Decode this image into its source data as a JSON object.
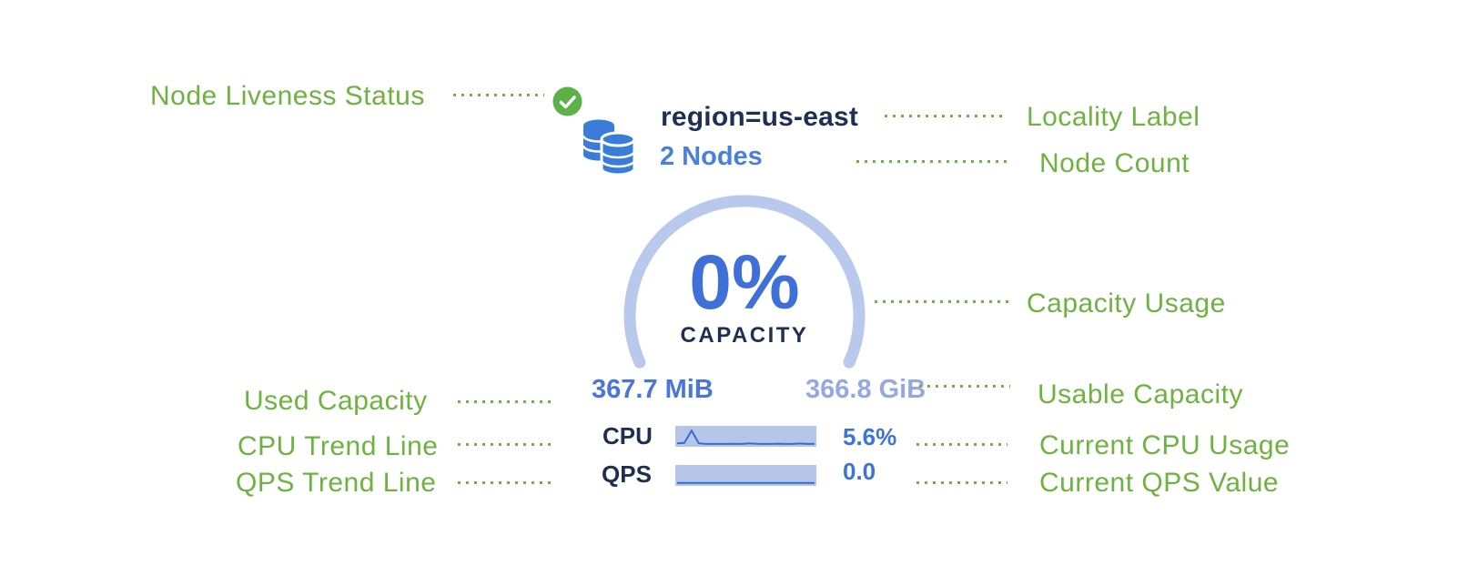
{
  "node_panel": {
    "liveness_status": "healthy",
    "locality_label": "region=us-east",
    "node_count": "2 Nodes",
    "capacity_gauge": {
      "percent": "0%",
      "label": "CAPACITY",
      "used": "367.7 MiB",
      "usable": "366.8 GiB"
    },
    "cpu": {
      "label": "CPU",
      "value": "5.6%",
      "trend": [
        0.1,
        0.12,
        0.88,
        0.1,
        0.06,
        0.06,
        0.06,
        0.06,
        0.07,
        0.06,
        0.1,
        0.07,
        0.06,
        0.06,
        0.08,
        0.06,
        0.06,
        0.09,
        0.06,
        0.07
      ]
    },
    "qps": {
      "label": "QPS",
      "value": "0.0",
      "trend": [
        0.07,
        0.07,
        0.07,
        0.07,
        0.07,
        0.07,
        0.07,
        0.07,
        0.07,
        0.07,
        0.07,
        0.07,
        0.07,
        0.07,
        0.07,
        0.07,
        0.07,
        0.07,
        0.07,
        0.07
      ]
    }
  },
  "annotations": {
    "node_liveness": "Node Liveness Status",
    "locality": "Locality Label",
    "node_count": "Node Count",
    "capacity_usage": "Capacity Usage",
    "used_capacity": "Used Capacity",
    "usable_capacity": "Usable Capacity",
    "cpu_trend": "CPU Trend Line",
    "current_cpu": "Current CPU Usage",
    "qps_trend": "QPS Trend Line",
    "current_qps": "Current QPS Value"
  },
  "colors": {
    "annotation_green": "#6cb33f",
    "liveness_green": "#5cb246",
    "icon_blue": "#3a7cd9",
    "navy": "#1d2f52",
    "accent_blue": "#3f70d8",
    "node_count_blue": "#4a80dd",
    "arc_light_blue": "#b9c9ed",
    "used_value_blue": "#4a76dc",
    "usable_value_blue": "#94a9e3",
    "value_blue": "#3d73dd",
    "spark_bg": "#b5c6ea",
    "spark_line": "#3b6ace"
  }
}
